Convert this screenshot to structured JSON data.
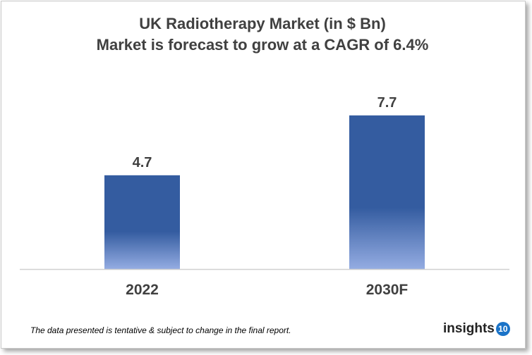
{
  "chart_data": {
    "type": "bar",
    "title": "UK Radiotherapy Market (in $ Bn)",
    "subtitle": "Market is forecast to grow at a CAGR of 6.4%",
    "categories": [
      "2022",
      "2030F"
    ],
    "values": [
      4.7,
      7.7
    ],
    "data_labels": [
      "4.7",
      "7.7"
    ],
    "xlabel": "",
    "ylabel": "",
    "ylim": [
      0,
      9.6
    ],
    "grid": false,
    "colors": {
      "bar_top": "#345CA0",
      "bar_bottom": "#94ACE2",
      "axis": "#d0d0d0",
      "text": "#404040"
    }
  },
  "footnote": "The data presented is tentative & subject to change in the final report.",
  "logo": {
    "text": "insights",
    "badge": "10",
    "color": "#1a73c8"
  }
}
